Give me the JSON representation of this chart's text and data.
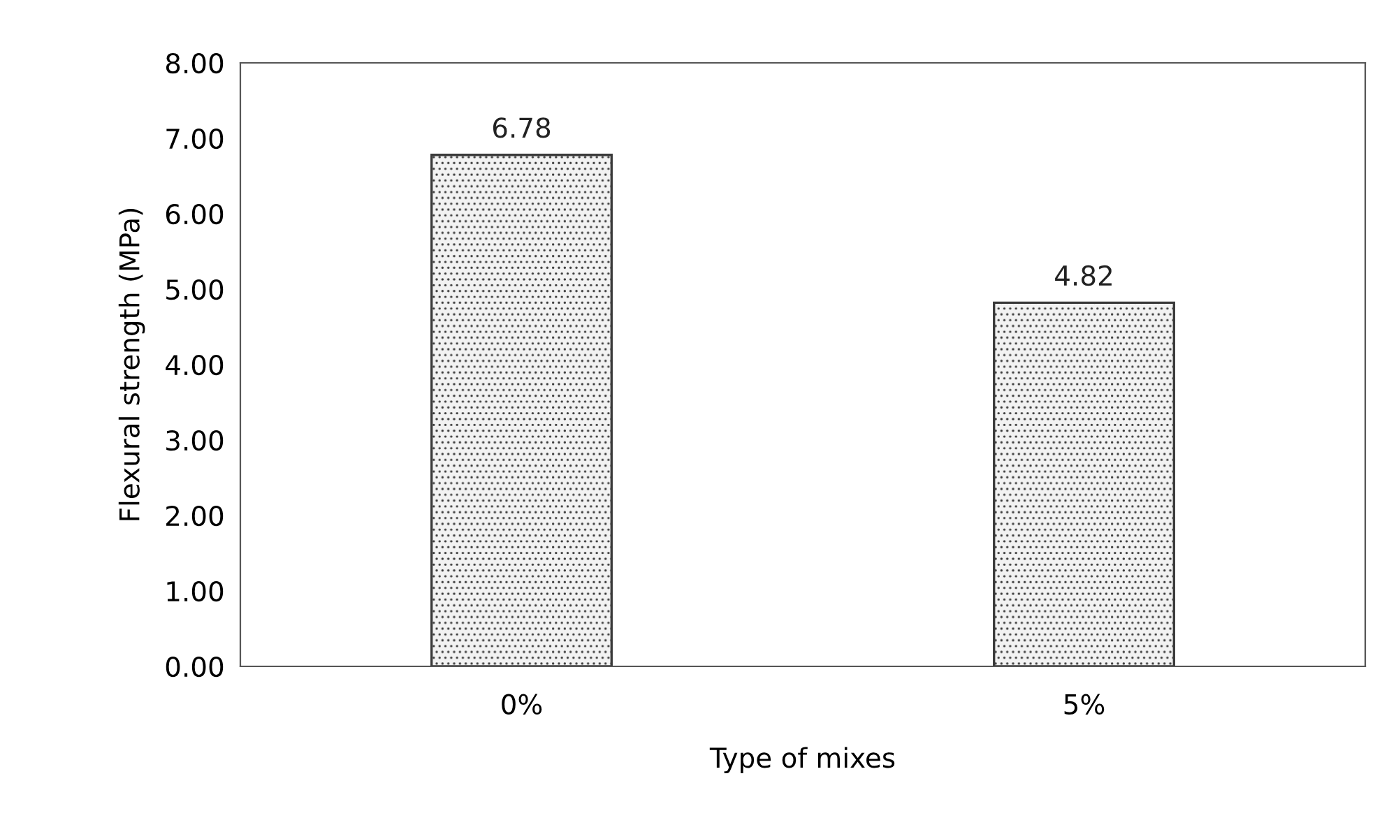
{
  "chart_data": {
    "type": "bar",
    "xlabel": "Type of mixes",
    "ylabel": "Flexural strength (MPa)",
    "categories": [
      "0%",
      "5%"
    ],
    "values": [
      6.78,
      4.82
    ],
    "color": "#3a3a3a",
    "data_labels": true,
    "ylim": [
      0,
      8
    ],
    "yticks": [
      {
        "value": 0,
        "label": "0.00"
      },
      {
        "value": 1,
        "label": "1.00"
      },
      {
        "value": 2,
        "label": "2.00"
      },
      {
        "value": 3,
        "label": "3.00"
      },
      {
        "value": 4,
        "label": "4.00"
      },
      {
        "value": 5,
        "label": "5.00"
      },
      {
        "value": 6,
        "label": "6.00"
      },
      {
        "value": 7,
        "label": "7.00"
      },
      {
        "value": 8,
        "label": "8.00"
      }
    ],
    "grid": false,
    "legend": false
  }
}
